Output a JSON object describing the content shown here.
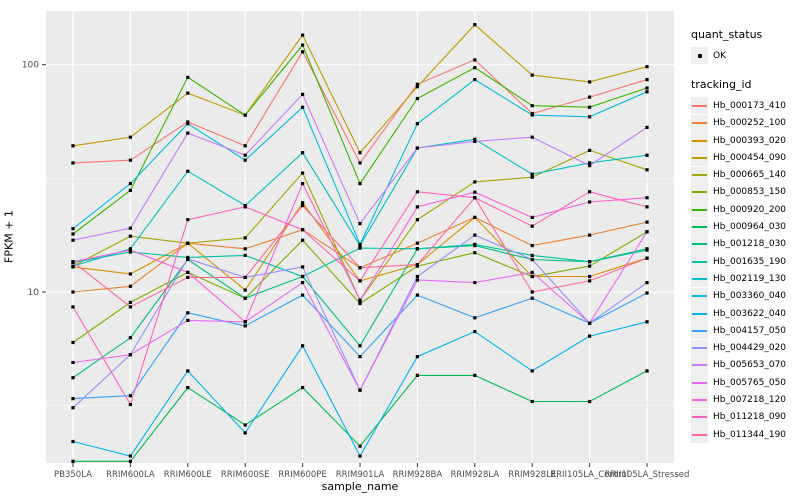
{
  "legend": {
    "quant_status_title": "quant_status",
    "ok_label": "OK",
    "tracking_title": "tracking_id"
  },
  "chart_data": {
    "type": "line",
    "title": "",
    "xlabel": "sample_name",
    "ylabel": "FPKM + 1",
    "y_scale": "log10",
    "ylim": [
      1.77,
      172.3
    ],
    "y_ticks": [
      10,
      100
    ],
    "y_tick_labels": [
      "10",
      "100"
    ],
    "y_minor_gridlines": [
      3.162,
      31.623
    ],
    "grid": true,
    "legend_position": "right",
    "panel_color": "#EBEBEB",
    "point_color": "#000000",
    "categories": [
      "PB350LA",
      "RRIM600LA",
      "RRIM600LE",
      "RRIM600SE",
      "RRIM600PE",
      "RRIM901LA",
      "RRIM928BA",
      "RRIM928LA",
      "RRIM928LE",
      "RRII105LA_Control",
      "RRII105LA_Stressed"
    ],
    "quant_status": "OK",
    "series": [
      {
        "name": "Hb_000173_410",
        "color": "#F8766D",
        "values": [
          37,
          38,
          56,
          44,
          114,
          37,
          82,
          105,
          61,
          72,
          86
        ]
      },
      {
        "name": "Hb_000252_100",
        "color": "#EA8331",
        "values": [
          10,
          10.6,
          16.4,
          15.5,
          18.8,
          12.8,
          16.4,
          21.3,
          16,
          17.8,
          20.3
        ]
      },
      {
        "name": "Hb_000393_020",
        "color": "#D89000",
        "values": [
          12.9,
          12,
          16.4,
          10.2,
          24.7,
          11.2,
          13.2,
          21.3,
          11.7,
          11.7,
          14.1
        ]
      },
      {
        "name": "Hb_000454_090",
        "color": "#C09B00",
        "values": [
          44,
          48,
          75,
          60,
          135,
          41,
          80,
          150,
          90,
          84,
          98
        ]
      },
      {
        "name": "Hb_000665_140",
        "color": "#A3A500",
        "values": [
          13,
          17.6,
          16.4,
          17.3,
          33.4,
          9.2,
          20.8,
          30.5,
          32,
          42,
          34.5
        ]
      },
      {
        "name": "Hb_000853_150",
        "color": "#7CAE00",
        "values": [
          6,
          9,
          12.2,
          9.4,
          16.9,
          8.9,
          13,
          14.9,
          11.7,
          13,
          18.4
        ]
      },
      {
        "name": "Hb_000920_200",
        "color": "#39B600",
        "values": [
          18,
          28,
          88,
          60,
          122,
          30,
          71,
          97,
          66,
          65,
          79
        ]
      },
      {
        "name": "Hb_000964_030",
        "color": "#00BB4E",
        "values": [
          1.8,
          1.8,
          3.8,
          2.6,
          3.8,
          2.1,
          4.3,
          4.3,
          3.3,
          3.3,
          4.5
        ]
      },
      {
        "name": "Hb_001218_030",
        "color": "#00BF7D",
        "values": [
          4.2,
          6.3,
          13.9,
          9.4,
          11.7,
          5.8,
          15.5,
          16,
          13.9,
          13.6,
          15.5
        ]
      },
      {
        "name": "Hb_001635_190",
        "color": "#00C1A3",
        "values": [
          13.5,
          15,
          14.2,
          14.5,
          11.7,
          15.6,
          15.5,
          16.2,
          14.5,
          13.6,
          15.3
        ]
      },
      {
        "name": "Hb_002119_130",
        "color": "#00BFC4",
        "values": [
          13,
          15.5,
          34,
          24,
          41,
          16,
          43,
          47,
          33,
          37,
          40
        ]
      },
      {
        "name": "Hb_003360_040",
        "color": "#00BAE0",
        "values": [
          19,
          30,
          55,
          38,
          65,
          16.2,
          55,
          86,
          60,
          59,
          76
        ]
      },
      {
        "name": "Hb_003622_040",
        "color": "#00B0F6",
        "values": [
          2.2,
          1.9,
          4.5,
          2.4,
          5.8,
          1.9,
          5.2,
          6.7,
          4.5,
          6.4,
          7.4
        ]
      },
      {
        "name": "Hb_004157_050",
        "color": "#35A2FF",
        "values": [
          3.4,
          3.5,
          8.1,
          7.1,
          9.7,
          5.2,
          9.7,
          7.7,
          9.4,
          7.3,
          9.9
        ]
      },
      {
        "name": "Hb_004429_020",
        "color": "#9590FF",
        "values": [
          3.1,
          5.3,
          14,
          11.6,
          12.9,
          3.7,
          11.7,
          17.8,
          13.9,
          7.3,
          11
        ]
      },
      {
        "name": "Hb_005653_070",
        "color": "#C77CFF",
        "values": [
          16.9,
          19.1,
          50,
          40,
          74,
          20,
          43,
          46,
          48,
          36,
          53
        ]
      },
      {
        "name": "Hb_005765_050",
        "color": "#E76BF3",
        "values": [
          4.9,
          5.3,
          7.5,
          7.4,
          11,
          3.7,
          11.3,
          11,
          12.2,
          7.3,
          18.4
        ]
      },
      {
        "name": "Hb_007218_120",
        "color": "#FA62DB",
        "values": [
          13.6,
          15.3,
          12.2,
          7.4,
          30,
          9.2,
          23.7,
          27.5,
          21.3,
          24.9,
          26
        ]
      },
      {
        "name": "Hb_011218_090",
        "color": "#FF62BC",
        "values": [
          8.6,
          3.2,
          20.8,
          23.7,
          18.8,
          11.2,
          27.6,
          26,
          19.5,
          27.6,
          23.7
        ]
      },
      {
        "name": "Hb_011344_190",
        "color": "#FF6A98",
        "values": [
          13.6,
          8.6,
          11.6,
          11.6,
          24,
          12.8,
          13.2,
          26,
          10,
          11.2,
          14.1
        ]
      }
    ]
  }
}
